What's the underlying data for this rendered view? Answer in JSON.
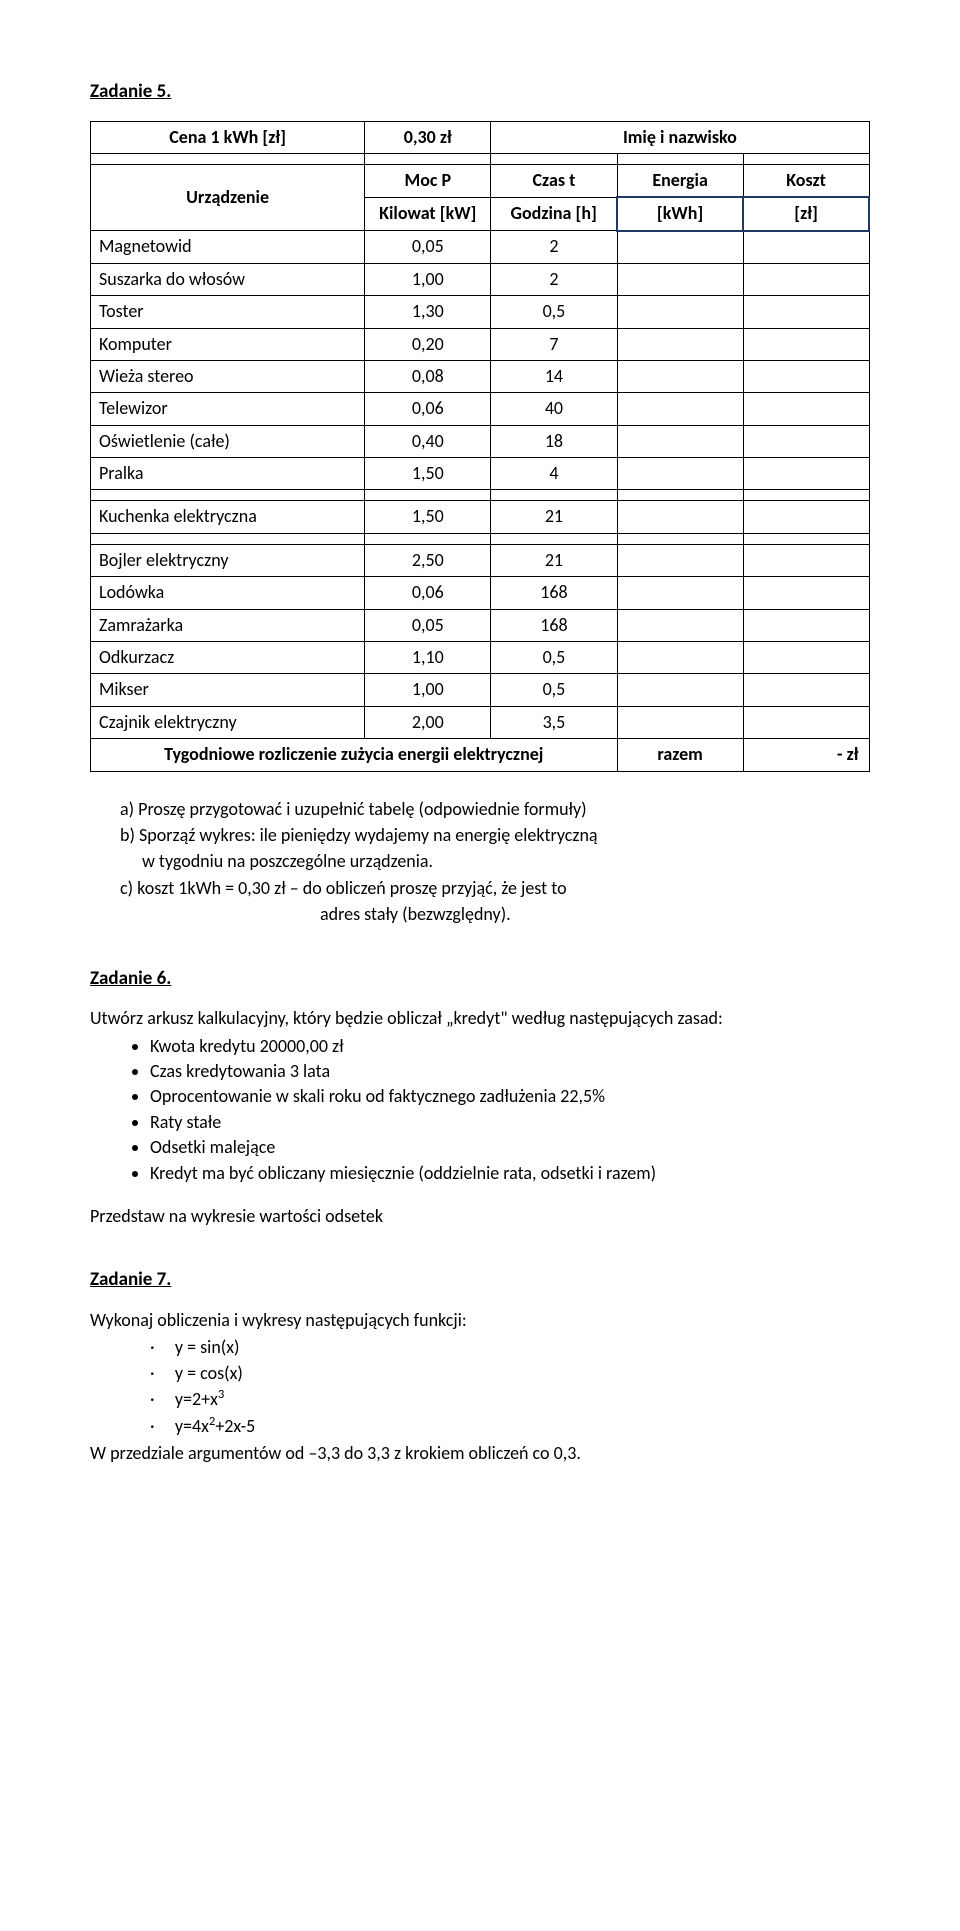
{
  "task5": {
    "title": "Zadanie 5.",
    "header_row1": {
      "c1": "Cena 1 kWh [zł]",
      "c2": "0,30 zł",
      "c3": "Imię i nazwisko"
    },
    "header_row2": {
      "device": "Urządzenie",
      "mocp": "Moc P",
      "czas": "Czas t",
      "energia": "Energia",
      "koszt": "Koszt"
    },
    "header_row3": {
      "mocp_unit": "Kilowat [kW]",
      "czas_unit": "Godzina [h]",
      "energia_unit": "[kWh]",
      "koszt_unit": "[zł]"
    },
    "rows": [
      {
        "name": "Magnetowid",
        "p": "0,05",
        "t": "2"
      },
      {
        "name": "Suszarka do włosów",
        "p": "1,00",
        "t": "2"
      },
      {
        "name": "Toster",
        "p": "1,30",
        "t": "0,5"
      },
      {
        "name": "Komputer",
        "p": "0,20",
        "t": "7"
      },
      {
        "name": "Wieża stereo",
        "p": "0,08",
        "t": "14"
      },
      {
        "name": "Telewizor",
        "p": "0,06",
        "t": "40"
      },
      {
        "name": "Oświetlenie (całe)",
        "p": "0,40",
        "t": "18"
      },
      {
        "name": "Pralka",
        "p": "1,50",
        "t": "4"
      },
      {
        "name": "Kuchenka elektryczna",
        "p": "1,50",
        "t": "21"
      },
      {
        "name": "Bojler elektryczny",
        "p": "2,50",
        "t": "21"
      },
      {
        "name": "Lodówka",
        "p": "0,06",
        "t": "168"
      },
      {
        "name": "Zamrażarka",
        "p": "0,05",
        "t": "168"
      },
      {
        "name": "Odkurzacz",
        "p": "1,10",
        "t": "0,5"
      },
      {
        "name": "Mikser",
        "p": "1,00",
        "t": "0,5"
      },
      {
        "name": "Czajnik elektryczny",
        "p": "2,00",
        "t": "3,5"
      }
    ],
    "footer": {
      "label": "Tygodniowe rozliczenie zużycia energii elektrycznej",
      "razem": "razem",
      "value": "-   zł"
    },
    "questions": {
      "a": "a) Proszę przygotować i uzupełnić tabelę (odpowiednie formuły)",
      "b1": "b) Sporząź wykres: ile pieniędzy wydajemy na energię elektryczną",
      "b2": "w tygodniu  na  poszczególne urządzenia.",
      "c1": "c) koszt 1kWh = 0,30 zł – do obliczeń proszę przyjąć, że jest to",
      "c2": "adres stały (bezwzględny)."
    }
  },
  "task6": {
    "title": "Zadanie 6.",
    "intro": "Utwórz arkusz kalkulacyjny, który będzie obliczał „kredyt\" według następujących zasad:",
    "bullets": [
      "Kwota kredytu 20000,00 zł",
      "Czas kredytowania 3 lata",
      "Oprocentowanie w skali roku od faktycznego zadłużenia 22,5%",
      "Raty stałe",
      "Odsetki malejące",
      "Kredyt ma być obliczany miesięcznie (oddzielnie rata, odsetki i razem)"
    ],
    "outro": "Przedstaw na wykresie wartości odsetek"
  },
  "task7": {
    "title": "Zadanie 7.",
    "intro": "Wykonaj obliczenia i wykresy następujących funkcji:",
    "fns": [
      {
        "pre": "y = sin(x)"
      },
      {
        "pre": "y = cos(x)"
      },
      {
        "pre": "y=2+x",
        "sup": "3"
      },
      {
        "pre": "y=4x",
        "sup": "2",
        "post": "+2x-5"
      }
    ],
    "outro": "W przedziale argumentów od –3,3 do 3,3 z krokiem obliczeń co 0,3."
  },
  "colors": {
    "text": "#000000",
    "bg": "#ffffff",
    "heavy_border": "#1f3864"
  }
}
